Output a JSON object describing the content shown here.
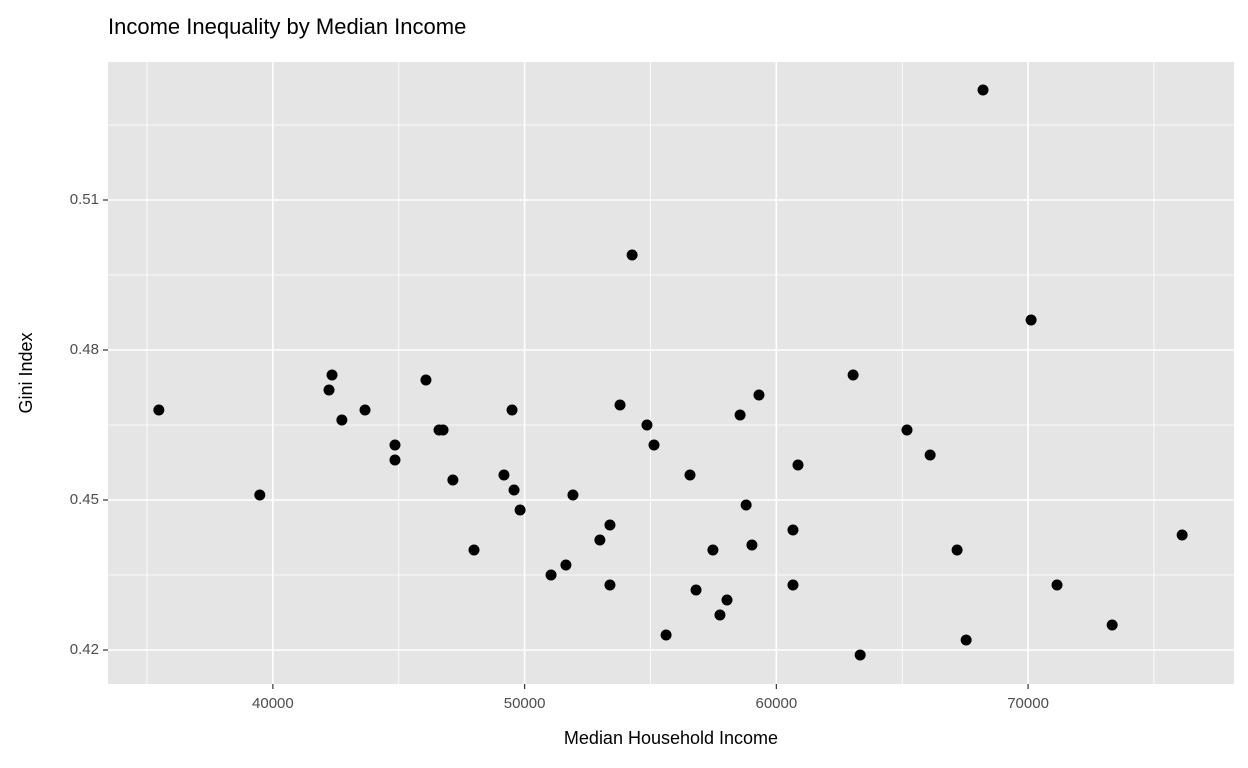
{
  "chart_data": {
    "type": "scatter",
    "title": "Income Inequality by Median Income",
    "x_label": "Median Household Income",
    "y_label": "Gini Index",
    "color": "#000000",
    "panel_color": "#e5e5e5",
    "grid": true,
    "xlim": [
      33450,
      78180
    ],
    "ylim": [
      0.4132,
      0.5376
    ],
    "xticks": [
      40000,
      50000,
      60000,
      70000
    ],
    "yticks": [
      0.42,
      0.45,
      0.48,
      0.51
    ],
    "x_minor_ticks": [
      35000,
      45000,
      55000,
      65000,
      75000
    ],
    "y_minor_ticks": [
      0.435,
      0.465,
      0.495,
      0.525
    ],
    "x": [
      35470,
      39480,
      42230,
      42350,
      42740,
      43660,
      44850,
      44850,
      46080,
      46600,
      46760,
      47150,
      47990,
      49180,
      49500,
      49580,
      49820,
      51050,
      51640,
      51920,
      52990,
      53390,
      53390,
      53790,
      54270,
      54860,
      55140,
      55620,
      56570,
      56810,
      57480,
      57760,
      58040,
      58560,
      58800,
      59030,
      59310,
      60660,
      60660,
      60860,
      63050,
      63330,
      65190,
      66110,
      67180,
      67540,
      68210,
      70120,
      71150,
      73340,
      76120
    ],
    "values": [
      0.468,
      0.451,
      0.472,
      0.475,
      0.466,
      0.468,
      0.461,
      0.458,
      0.474,
      0.464,
      0.464,
      0.454,
      0.44,
      0.455,
      0.468,
      0.452,
      0.448,
      0.435,
      0.437,
      0.451,
      0.442,
      0.445,
      0.433,
      0.469,
      0.499,
      0.465,
      0.461,
      0.423,
      0.455,
      0.432,
      0.44,
      0.427,
      0.43,
      0.467,
      0.449,
      0.441,
      0.471,
      0.444,
      0.433,
      0.457,
      0.475,
      0.419,
      0.464,
      0.459,
      0.44,
      0.422,
      0.532,
      0.486,
      0.433,
      0.425,
      0.443
    ]
  }
}
